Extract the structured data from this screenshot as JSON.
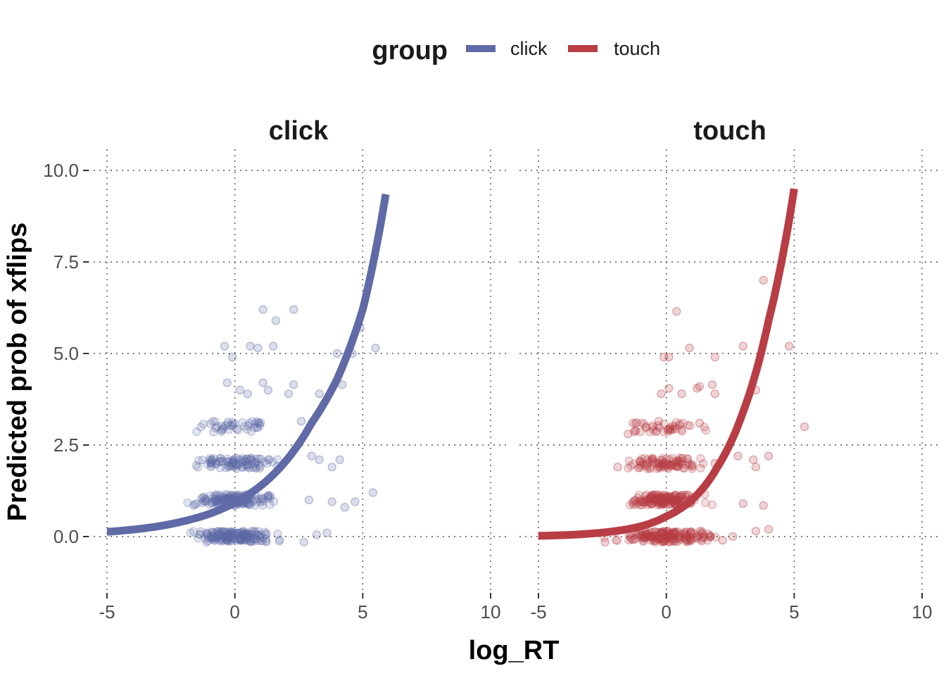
{
  "chart_data": {
    "type": "scatter",
    "facet_by": "group",
    "xlabel": "log_RT",
    "ylabel": "Predicted prob of xflips",
    "xlim": [
      -5,
      10
    ],
    "ylim": [
      -1.2,
      10.6
    ],
    "x_ticks": [
      -5,
      0,
      5,
      10
    ],
    "y_ticks": [
      0,
      2.5,
      5,
      7.5,
      10
    ],
    "y_tick_labels": [
      "0.0",
      "2.5",
      "5.0",
      "7.5",
      "10.0"
    ],
    "grid": "dotted major gridlines",
    "legend": {
      "title": "group",
      "position": "top",
      "entries": [
        {
          "label": "click",
          "color": "#5f6aa6"
        },
        {
          "label": "touch",
          "color": "#b83d44"
        }
      ]
    },
    "panels": [
      {
        "label": "click",
        "color": "#5f6aa6",
        "curve": {
          "x": [
            -5,
            -4,
            -3,
            -2,
            -1,
            0,
            1,
            2,
            3,
            4,
            5,
            5.9
          ],
          "y": [
            0.13,
            0.19,
            0.28,
            0.42,
            0.62,
            0.93,
            1.38,
            2.07,
            3.1,
            4.3,
            6.2,
            9.35
          ]
        },
        "points": [
          {
            "x": -1.5,
            "y": 0.9
          },
          {
            "x": -1.1,
            "y": -0.15
          },
          {
            "x": -0.9,
            "y": 2.1
          },
          {
            "x": -0.7,
            "y": 3.0
          },
          {
            "x": -0.4,
            "y": 5.2
          },
          {
            "x": -0.3,
            "y": 4.2
          },
          {
            "x": -0.1,
            "y": 4.9
          },
          {
            "x": 0.2,
            "y": 4.0
          },
          {
            "x": 0.5,
            "y": 3.9
          },
          {
            "x": 0.6,
            "y": 5.2
          },
          {
            "x": 0.9,
            "y": 5.15
          },
          {
            "x": 1.1,
            "y": 6.2
          },
          {
            "x": 1.1,
            "y": 4.2
          },
          {
            "x": 1.3,
            "y": 4.0
          },
          {
            "x": 1.5,
            "y": 5.2
          },
          {
            "x": 1.6,
            "y": 5.9
          },
          {
            "x": 2.1,
            "y": 3.9
          },
          {
            "x": 2.3,
            "y": 6.2
          },
          {
            "x": 2.3,
            "y": 4.15
          },
          {
            "x": 2.6,
            "y": 3.15
          },
          {
            "x": 2.9,
            "y": 1.0
          },
          {
            "x": 3.0,
            "y": 2.2
          },
          {
            "x": 3.3,
            "y": 3.9
          },
          {
            "x": 3.3,
            "y": 2.1
          },
          {
            "x": 3.6,
            "y": 0.1
          },
          {
            "x": 3.8,
            "y": 1.9
          },
          {
            "x": 3.8,
            "y": 0.95
          },
          {
            "x": 4.0,
            "y": 5.0
          },
          {
            "x": 4.2,
            "y": 4.15
          },
          {
            "x": 4.1,
            "y": 2.1
          },
          {
            "x": 4.3,
            "y": 0.8
          },
          {
            "x": 4.6,
            "y": 5.0
          },
          {
            "x": 4.7,
            "y": 0.95
          },
          {
            "x": 4.9,
            "y": 5.7
          },
          {
            "x": 5.4,
            "y": 1.2
          },
          {
            "x": 5.5,
            "y": 5.15
          },
          {
            "x": 2.7,
            "y": -0.15
          },
          {
            "x": 3.2,
            "y": 0.05
          }
        ]
      },
      {
        "label": "touch",
        "color": "#b83d44",
        "curve": {
          "x": [
            -5,
            -4,
            -3,
            -2,
            -1,
            0,
            1,
            2,
            3,
            4,
            5
          ],
          "y": [
            0.02,
            0.04,
            0.08,
            0.15,
            0.28,
            0.55,
            1.0,
            1.9,
            3.4,
            5.9,
            9.5
          ]
        },
        "points": [
          {
            "x": -2.4,
            "y": -0.15
          },
          {
            "x": -1.9,
            "y": 1.9
          },
          {
            "x": -1.5,
            "y": 2.8
          },
          {
            "x": -1.3,
            "y": 3.1
          },
          {
            "x": -0.8,
            "y": 3.0
          },
          {
            "x": -0.3,
            "y": 3.15
          },
          {
            "x": -0.1,
            "y": 4.9
          },
          {
            "x": 0.1,
            "y": 4.9
          },
          {
            "x": 0.1,
            "y": 4.05
          },
          {
            "x": -0.2,
            "y": 3.9
          },
          {
            "x": 0.4,
            "y": 6.15
          },
          {
            "x": 0.6,
            "y": 3.9
          },
          {
            "x": 0.9,
            "y": 5.15
          },
          {
            "x": 1.2,
            "y": 4.05
          },
          {
            "x": 1.3,
            "y": 4.1
          },
          {
            "x": 1.3,
            "y": 3.1
          },
          {
            "x": 1.9,
            "y": 4.9
          },
          {
            "x": 1.8,
            "y": 4.15
          },
          {
            "x": 1.9,
            "y": 3.9
          },
          {
            "x": 1.9,
            "y": 2.0
          },
          {
            "x": 2.6,
            "y": 0.0
          },
          {
            "x": 2.8,
            "y": 2.2
          },
          {
            "x": 3.0,
            "y": 5.2
          },
          {
            "x": 3.0,
            "y": 0.9
          },
          {
            "x": 3.4,
            "y": 2.1
          },
          {
            "x": 3.5,
            "y": 1.9
          },
          {
            "x": 3.5,
            "y": 0.15
          },
          {
            "x": 3.8,
            "y": 0.85
          },
          {
            "x": 3.8,
            "y": 7.0
          },
          {
            "x": 3.5,
            "y": 4.0
          },
          {
            "x": 4.0,
            "y": 2.2
          },
          {
            "x": 4.0,
            "y": 0.2
          },
          {
            "x": 4.8,
            "y": 5.2
          },
          {
            "x": 5.4,
            "y": 3.0
          },
          {
            "x": 2.2,
            "y": -0.1
          }
        ]
      }
    ]
  }
}
